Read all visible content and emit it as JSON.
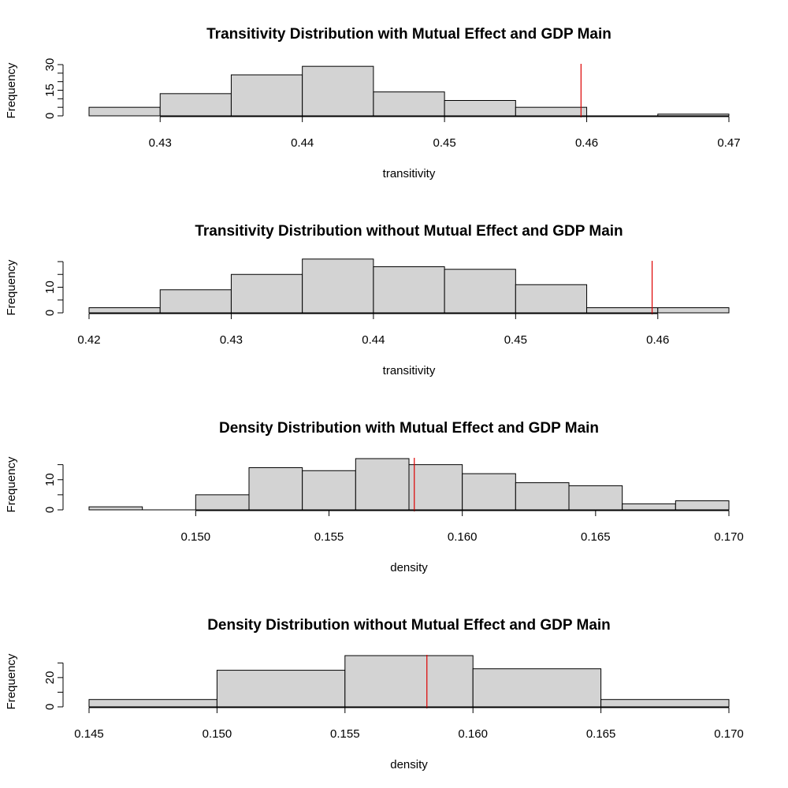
{
  "chart_data": [
    {
      "type": "histogram",
      "title": "Transitivity Distribution with Mutual Effect and GDP Main",
      "xlabel": "transitivity",
      "ylabel": "Frequency",
      "xlim": [
        0.425,
        0.47
      ],
      "ylim": [
        0,
        30
      ],
      "x_ticks": [
        "0.43",
        "0.44",
        "0.45",
        "0.46",
        "0.47"
      ],
      "y_ticks": [
        "0",
        "15",
        "30"
      ],
      "bins": [
        {
          "from": 0.425,
          "to": 0.43,
          "count": 5
        },
        {
          "from": 0.43,
          "to": 0.435,
          "count": 13
        },
        {
          "from": 0.435,
          "to": 0.44,
          "count": 24
        },
        {
          "from": 0.44,
          "to": 0.445,
          "count": 29
        },
        {
          "from": 0.445,
          "to": 0.45,
          "count": 14
        },
        {
          "from": 0.45,
          "to": 0.455,
          "count": 9
        },
        {
          "from": 0.455,
          "to": 0.46,
          "count": 5
        },
        {
          "from": 0.46,
          "to": 0.465,
          "count": 0
        },
        {
          "from": 0.465,
          "to": 0.47,
          "count": 1
        }
      ],
      "reference_x": 0.4596,
      "reference_color": "#dd0000",
      "bar_color": "#d3d3d3"
    },
    {
      "type": "histogram",
      "title": "Transitivity Distribution without Mutual Effect and GDP Main",
      "xlabel": "transitivity",
      "ylabel": "Frequency",
      "xlim": [
        0.42,
        0.465
      ],
      "ylim": [
        0,
        20
      ],
      "x_ticks": [
        "0.42",
        "0.43",
        "0.44",
        "0.45",
        "0.46"
      ],
      "y_ticks": [
        "0",
        "10"
      ],
      "bins": [
        {
          "from": 0.42,
          "to": 0.425,
          "count": 2
        },
        {
          "from": 0.425,
          "to": 0.43,
          "count": 9
        },
        {
          "from": 0.43,
          "to": 0.435,
          "count": 15
        },
        {
          "from": 0.435,
          "to": 0.44,
          "count": 21
        },
        {
          "from": 0.44,
          "to": 0.445,
          "count": 18
        },
        {
          "from": 0.445,
          "to": 0.45,
          "count": 17
        },
        {
          "from": 0.45,
          "to": 0.455,
          "count": 11
        },
        {
          "from": 0.455,
          "to": 0.46,
          "count": 2
        },
        {
          "from": 0.46,
          "to": 0.465,
          "count": 2
        }
      ],
      "reference_x": 0.4596,
      "reference_color": "#dd0000",
      "bar_color": "#d3d3d3"
    },
    {
      "type": "histogram",
      "title": "Density Distribution with Mutual Effect and GDP Main",
      "xlabel": "density",
      "ylabel": "Frequency",
      "xlim": [
        0.146,
        0.17
      ],
      "ylim": [
        0,
        17
      ],
      "x_ticks": [
        "0.150",
        "0.155",
        "0.160",
        "0.165",
        "0.170"
      ],
      "y_ticks": [
        "0",
        "10"
      ],
      "bins": [
        {
          "from": 0.146,
          "to": 0.148,
          "count": 1
        },
        {
          "from": 0.148,
          "to": 0.15,
          "count": 0
        },
        {
          "from": 0.15,
          "to": 0.152,
          "count": 5
        },
        {
          "from": 0.152,
          "to": 0.154,
          "count": 14
        },
        {
          "from": 0.154,
          "to": 0.156,
          "count": 13
        },
        {
          "from": 0.156,
          "to": 0.158,
          "count": 17
        },
        {
          "from": 0.158,
          "to": 0.16,
          "count": 15
        },
        {
          "from": 0.16,
          "to": 0.162,
          "count": 12
        },
        {
          "from": 0.162,
          "to": 0.164,
          "count": 9
        },
        {
          "from": 0.164,
          "to": 0.166,
          "count": 8
        },
        {
          "from": 0.166,
          "to": 0.168,
          "count": 2
        },
        {
          "from": 0.168,
          "to": 0.17,
          "count": 3
        }
      ],
      "reference_x": 0.1582,
      "reference_color": "#dd0000",
      "bar_color": "#d3d3d3"
    },
    {
      "type": "histogram",
      "title": "Density Distribution without Mutual Effect and GDP Main",
      "xlabel": "density",
      "ylabel": "Frequency",
      "xlim": [
        0.145,
        0.17
      ],
      "ylim": [
        0,
        35
      ],
      "x_ticks": [
        "0.145",
        "0.150",
        "0.155",
        "0.160",
        "0.165",
        "0.170"
      ],
      "y_ticks": [
        "0",
        "20"
      ],
      "bins": [
        {
          "from": 0.145,
          "to": 0.15,
          "count": 5
        },
        {
          "from": 0.15,
          "to": 0.155,
          "count": 25
        },
        {
          "from": 0.155,
          "to": 0.16,
          "count": 35
        },
        {
          "from": 0.16,
          "to": 0.165,
          "count": 26
        },
        {
          "from": 0.165,
          "to": 0.17,
          "count": 5
        }
      ],
      "reference_x": 0.1582,
      "reference_color": "#dd0000",
      "bar_color": "#d3d3d3"
    }
  ]
}
